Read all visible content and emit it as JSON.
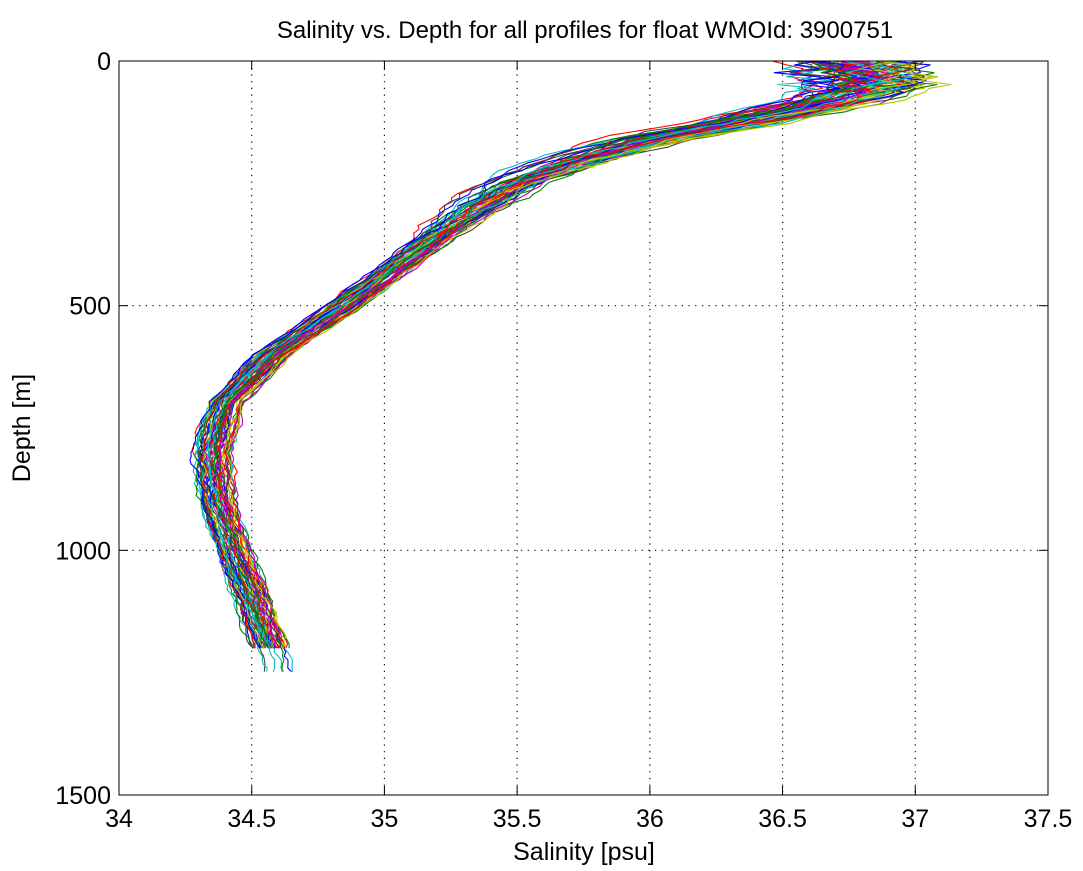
{
  "chart_data": {
    "type": "line",
    "title": "Salinity vs. Depth for all profiles for float WMOId: 3900751",
    "xlabel": "Salinity [psu]",
    "ylabel": "Depth [m]",
    "xlim": [
      34,
      37.5
    ],
    "ylim": [
      0,
      1500
    ],
    "y_reversed": true,
    "grid": true,
    "xticks": [
      34,
      34.5,
      35,
      35.5,
      36,
      36.5,
      37,
      37.5
    ],
    "xtick_labels": [
      "34",
      "34.5",
      "35",
      "35.5",
      "36",
      "36.5",
      "37",
      "37.5"
    ],
    "yticks": [
      0,
      500,
      1000,
      1500
    ],
    "ytick_labels": [
      "0",
      "500",
      "1000",
      "1500"
    ],
    "profile_count": 60,
    "series_colors": [
      "#0000ff",
      "#008000",
      "#ff0000",
      "#00bfbf",
      "#bf00bf",
      "#bfbf00",
      "#404040"
    ],
    "mean_profile": {
      "depth": [
        0,
        20,
        40,
        60,
        80,
        100,
        130,
        160,
        200,
        250,
        300,
        400,
        500,
        600,
        700,
        800,
        900,
        1000,
        1100,
        1200,
        1250
      ],
      "salinity": [
        36.75,
        36.8,
        36.82,
        36.8,
        36.7,
        36.55,
        36.3,
        36.0,
        35.75,
        35.5,
        35.35,
        35.1,
        34.85,
        34.58,
        34.4,
        34.35,
        34.37,
        34.43,
        34.5,
        34.57,
        34.6
      ]
    }
  }
}
